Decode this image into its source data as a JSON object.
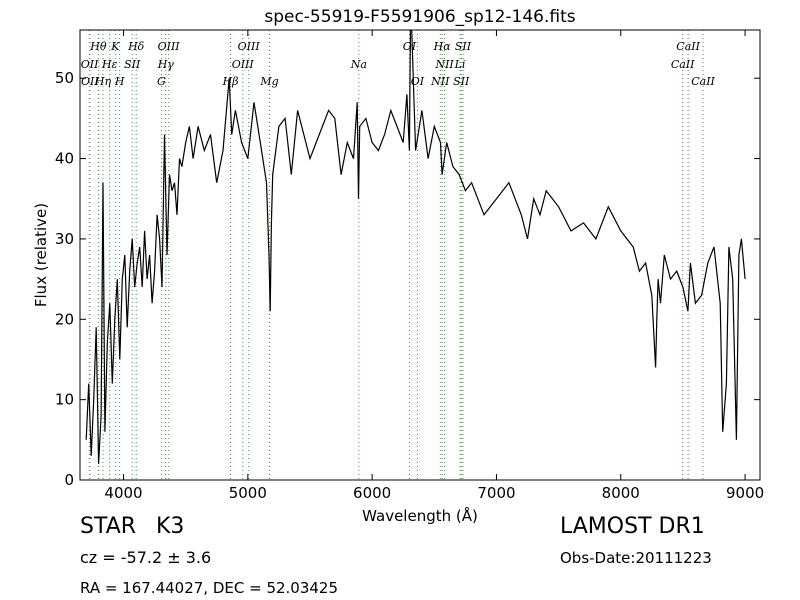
{
  "chart_data": {
    "type": "line",
    "title": "spec-55919-F5591906_sp12-146.fits",
    "xlabel": "Wavelength (Å)",
    "ylabel": "Flux (relative)",
    "xlim": [
      3650,
      9120
    ],
    "ylim": [
      0,
      56
    ],
    "xticks": [
      4000,
      5000,
      6000,
      7000,
      8000,
      9000
    ],
    "yticks": [
      0,
      10,
      20,
      30,
      40,
      50
    ],
    "grid": false,
    "line_color": "#000000",
    "marker_color": "#2ca02c",
    "series": [
      {
        "values_note": "",
        "x": [
          3700,
          3720,
          3740,
          3760,
          3780,
          3800,
          3820,
          3835,
          3850,
          3870,
          3890,
          3910,
          3930,
          3950,
          3970,
          3990,
          4010,
          4030,
          4050,
          4070,
          4090,
          4110,
          4130,
          4150,
          4170,
          4190,
          4210,
          4230,
          4250,
          4270,
          4290,
          4310,
          4330,
          4350,
          4370,
          4390,
          4410,
          4430,
          4450,
          4470,
          4500,
          4530,
          4560,
          4600,
          4650,
          4700,
          4750,
          4800,
          4850,
          4870,
          4900,
          4950,
          5000,
          5050,
          5100,
          5150,
          5170,
          5180,
          5190,
          5200,
          5250,
          5300,
          5350,
          5400,
          5450,
          5500,
          5550,
          5600,
          5650,
          5700,
          5750,
          5800,
          5850,
          5880,
          5890,
          5900,
          5950,
          6000,
          6050,
          6100,
          6150,
          6200,
          6250,
          6280,
          6300,
          6310,
          6350,
          6400,
          6450,
          6500,
          6550,
          6563,
          6600,
          6650,
          6700,
          6750,
          6800,
          6900,
          7000,
          7100,
          7200,
          7250,
          7300,
          7350,
          7400,
          7500,
          7600,
          7700,
          7800,
          7900,
          8000,
          8100,
          8150,
          8200,
          8250,
          8280,
          8290,
          8300,
          8320,
          8350,
          8400,
          8450,
          8500,
          8540,
          8560,
          8600,
          8650,
          8700,
          8750,
          8800,
          8820,
          8850,
          8870,
          8900,
          8930,
          8950,
          8970,
          9000
        ],
        "y": [
          5,
          12,
          3,
          10,
          19,
          2,
          8,
          37,
          6,
          17,
          22,
          12,
          20,
          25,
          15,
          25,
          28,
          19,
          26,
          30,
          24,
          27,
          29,
          24,
          31,
          25,
          28,
          22,
          26,
          33,
          30,
          24,
          43,
          28,
          38,
          36,
          37,
          33,
          40,
          39,
          42,
          44,
          40,
          44,
          41,
          43,
          37,
          41,
          50,
          43,
          46,
          42,
          40,
          47,
          42,
          37,
          28,
          21,
          32,
          38,
          44,
          45,
          38,
          46,
          43,
          40,
          42,
          44,
          46,
          45,
          38,
          42,
          40,
          47,
          35,
          44,
          45,
          42,
          41,
          43,
          46,
          44,
          42,
          48,
          41,
          60,
          41,
          46,
          40,
          44,
          42,
          38,
          42,
          39,
          38,
          36,
          37,
          33,
          35,
          37,
          33,
          30,
          35,
          33,
          36,
          34,
          31,
          32,
          30,
          34,
          31,
          29,
          26,
          27,
          23,
          14,
          20,
          25,
          22,
          28,
          25,
          26,
          24,
          21,
          27,
          22,
          23,
          27,
          29,
          22,
          6,
          12,
          29,
          25,
          5,
          28,
          30,
          25
        ]
      }
    ],
    "lines_top_row": [
      {
        "label": "Hθ",
        "x": 3798
      },
      {
        "label": "K",
        "x": 3934
      },
      {
        "label": "Hδ",
        "x": 4102
      },
      {
        "label": "OIII",
        "x": 4363
      },
      {
        "label": "OIII",
        "x": 5007
      },
      {
        "label": "OI",
        "x": 6300
      },
      {
        "label": "Hα",
        "x": 6563
      },
      {
        "label": "SII",
        "x": 6731
      },
      {
        "label": "CaII",
        "x": 8542
      }
    ],
    "lines_row2": [
      {
        "label": "OII",
        "x": 3727
      },
      {
        "label": "Hε",
        "x": 3889
      },
      {
        "label": "SII",
        "x": 4070
      },
      {
        "label": "Hγ",
        "x": 4340
      },
      {
        "label": "OIII",
        "x": 4959
      },
      {
        "label": "Na",
        "x": 5893
      },
      {
        "label": "NII",
        "x": 6583
      },
      {
        "label": "Li",
        "x": 6707
      },
      {
        "label": "CaII",
        "x": 8498
      }
    ],
    "lines_row3": [
      {
        "label": "OII",
        "x": 3729
      },
      {
        "label": "Hη",
        "x": 3835
      },
      {
        "label": "H",
        "x": 3969
      },
      {
        "label": "G",
        "x": 4305
      },
      {
        "label": "Hβ",
        "x": 4861
      },
      {
        "label": "Mg",
        "x": 5175
      },
      {
        "label": "OI",
        "x": 6364
      },
      {
        "label": "NII",
        "x": 6548
      },
      {
        "label": "SII",
        "x": 6717
      },
      {
        "label": "CaII",
        "x": 8662
      }
    ]
  },
  "info": {
    "class_label": "STAR",
    "subclass": "K3",
    "cz_text": "cz = -57.2 ± 3.6",
    "radec_text": "RA = 167.44027, DEC = 52.03425",
    "survey": "LAMOST DR1",
    "obs_date": "Obs-Date:20111223"
  }
}
